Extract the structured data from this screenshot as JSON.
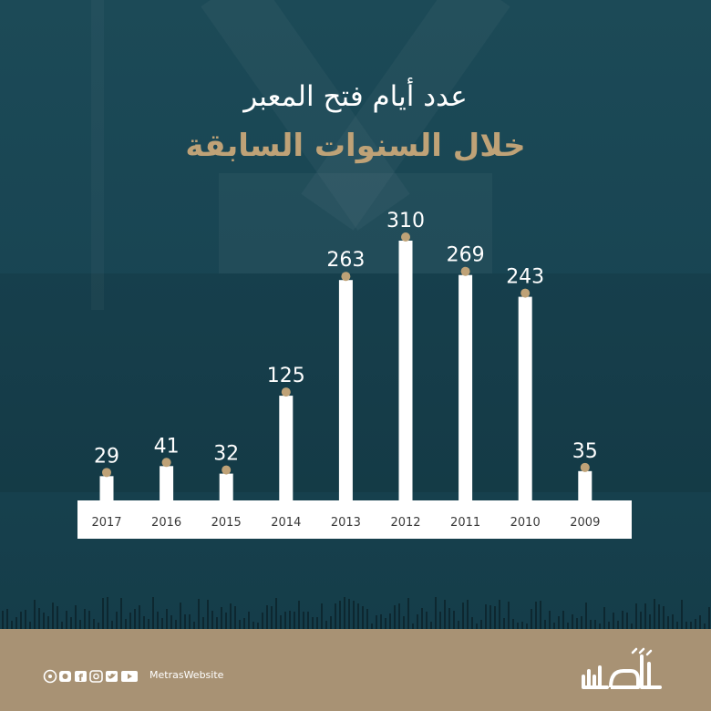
{
  "title": {
    "line1": "عدد أيام فتح المعبر",
    "line2": "خلال السنوات السابقة"
  },
  "colors": {
    "accent": "#bfa277",
    "bar": "#ffffff",
    "text": "#ffffff",
    "background": "#184452",
    "footer": "#a89274"
  },
  "chart_data": {
    "type": "bar",
    "categories": [
      "2017",
      "2016",
      "2015",
      "2014",
      "2013",
      "2012",
      "2011",
      "2010",
      "2009"
    ],
    "values": [
      29,
      41,
      32,
      125,
      263,
      310,
      269,
      243,
      35
    ],
    "title": "عدد أيام فتح المعبر خلال السنوات السابقة",
    "xlabel": "",
    "ylabel": "",
    "ylim": [
      0,
      310
    ],
    "grid": false,
    "legend": "none",
    "data_labels": true
  },
  "footer": {
    "handle": "MetrasWebsite",
    "logo_text": "مترآس",
    "icons": [
      "youtube-icon",
      "twitter-icon",
      "instagram-icon",
      "facebook-icon",
      "snapchat-icon",
      "telegram-icon"
    ]
  }
}
